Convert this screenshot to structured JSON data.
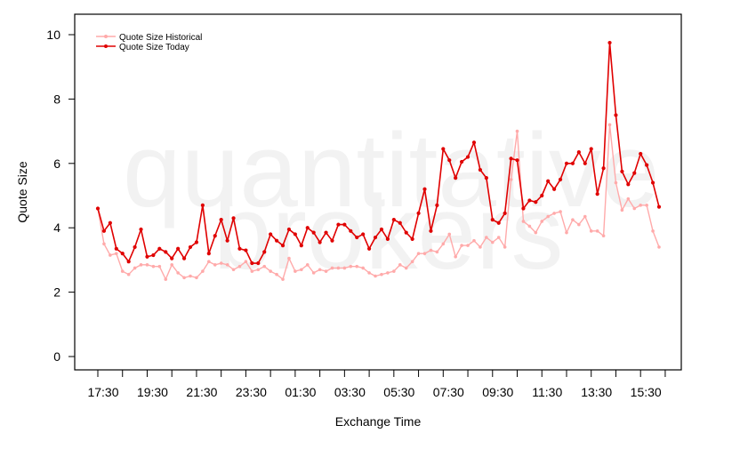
{
  "chart_data": {
    "type": "line",
    "title": "",
    "xlabel": "Exchange Time",
    "ylabel": "Quote Size",
    "ylim": [
      0,
      10
    ],
    "yticks": [
      0,
      2,
      4,
      6,
      8,
      10
    ],
    "xticks": [
      "17:30",
      "19:30",
      "21:30",
      "23:30",
      "01:30",
      "03:30",
      "05:30",
      "07:30",
      "09:30",
      "11:30",
      "13:30",
      "15:30"
    ],
    "grid": false,
    "legend_position": "top-left",
    "watermark": [
      "quantitative",
      "brokers"
    ],
    "series": [
      {
        "name": "Quote Size Historical",
        "color": "#ffaaaa",
        "values": [
          4.6,
          3.5,
          3.15,
          3.2,
          2.65,
          2.55,
          2.75,
          2.85,
          2.85,
          2.8,
          2.8,
          2.4,
          2.85,
          2.6,
          2.45,
          2.5,
          2.45,
          2.65,
          2.95,
          2.85,
          2.9,
          2.85,
          2.7,
          2.8,
          2.95,
          2.65,
          2.7,
          2.8,
          2.65,
          2.55,
          2.4,
          3.05,
          2.65,
          2.7,
          2.85,
          2.6,
          2.7,
          2.65,
          2.75,
          2.75,
          2.75,
          2.8,
          2.8,
          2.75,
          2.6,
          2.5,
          2.55,
          2.6,
          2.65,
          2.85,
          2.75,
          2.95,
          3.2,
          3.2,
          3.3,
          3.25,
          3.5,
          3.8,
          3.1,
          3.45,
          3.45,
          3.6,
          3.4,
          3.7,
          3.55,
          3.7,
          3.4,
          5.5,
          7.0,
          4.2,
          4.05,
          3.85,
          4.2,
          4.35,
          4.45,
          4.5,
          3.85,
          4.25,
          4.1,
          4.35,
          3.9,
          3.9,
          3.75,
          7.2,
          5.4,
          4.55,
          4.9,
          4.6,
          4.7,
          4.7,
          3.9,
          3.4
        ]
      },
      {
        "name": "Quote Size Today",
        "color": "#e00000",
        "values": [
          4.6,
          3.9,
          4.15,
          3.35,
          3.2,
          2.95,
          3.4,
          3.95,
          3.1,
          3.15,
          3.35,
          3.25,
          3.05,
          3.35,
          3.05,
          3.4,
          3.55,
          4.7,
          3.2,
          3.75,
          4.25,
          3.6,
          4.3,
          3.35,
          3.3,
          2.9,
          2.9,
          3.25,
          3.8,
          3.6,
          3.45,
          3.95,
          3.8,
          3.45,
          4.0,
          3.85,
          3.55,
          3.85,
          3.6,
          4.1,
          4.1,
          3.9,
          3.7,
          3.8,
          3.35,
          3.7,
          3.95,
          3.65,
          4.25,
          4.15,
          3.85,
          3.65,
          4.45,
          5.2,
          3.9,
          4.7,
          6.45,
          6.1,
          5.55,
          6.05,
          6.2,
          6.65,
          5.8,
          5.55,
          4.25,
          4.15,
          4.45,
          6.15,
          6.1,
          4.6,
          4.85,
          4.8,
          5.0,
          5.45,
          5.2,
          5.5,
          6.0,
          6.0,
          6.35,
          6.0,
          6.45,
          5.05,
          5.85,
          9.75,
          7.5,
          5.75,
          5.35,
          5.7,
          6.3,
          5.95,
          5.4,
          4.65
        ]
      }
    ]
  }
}
